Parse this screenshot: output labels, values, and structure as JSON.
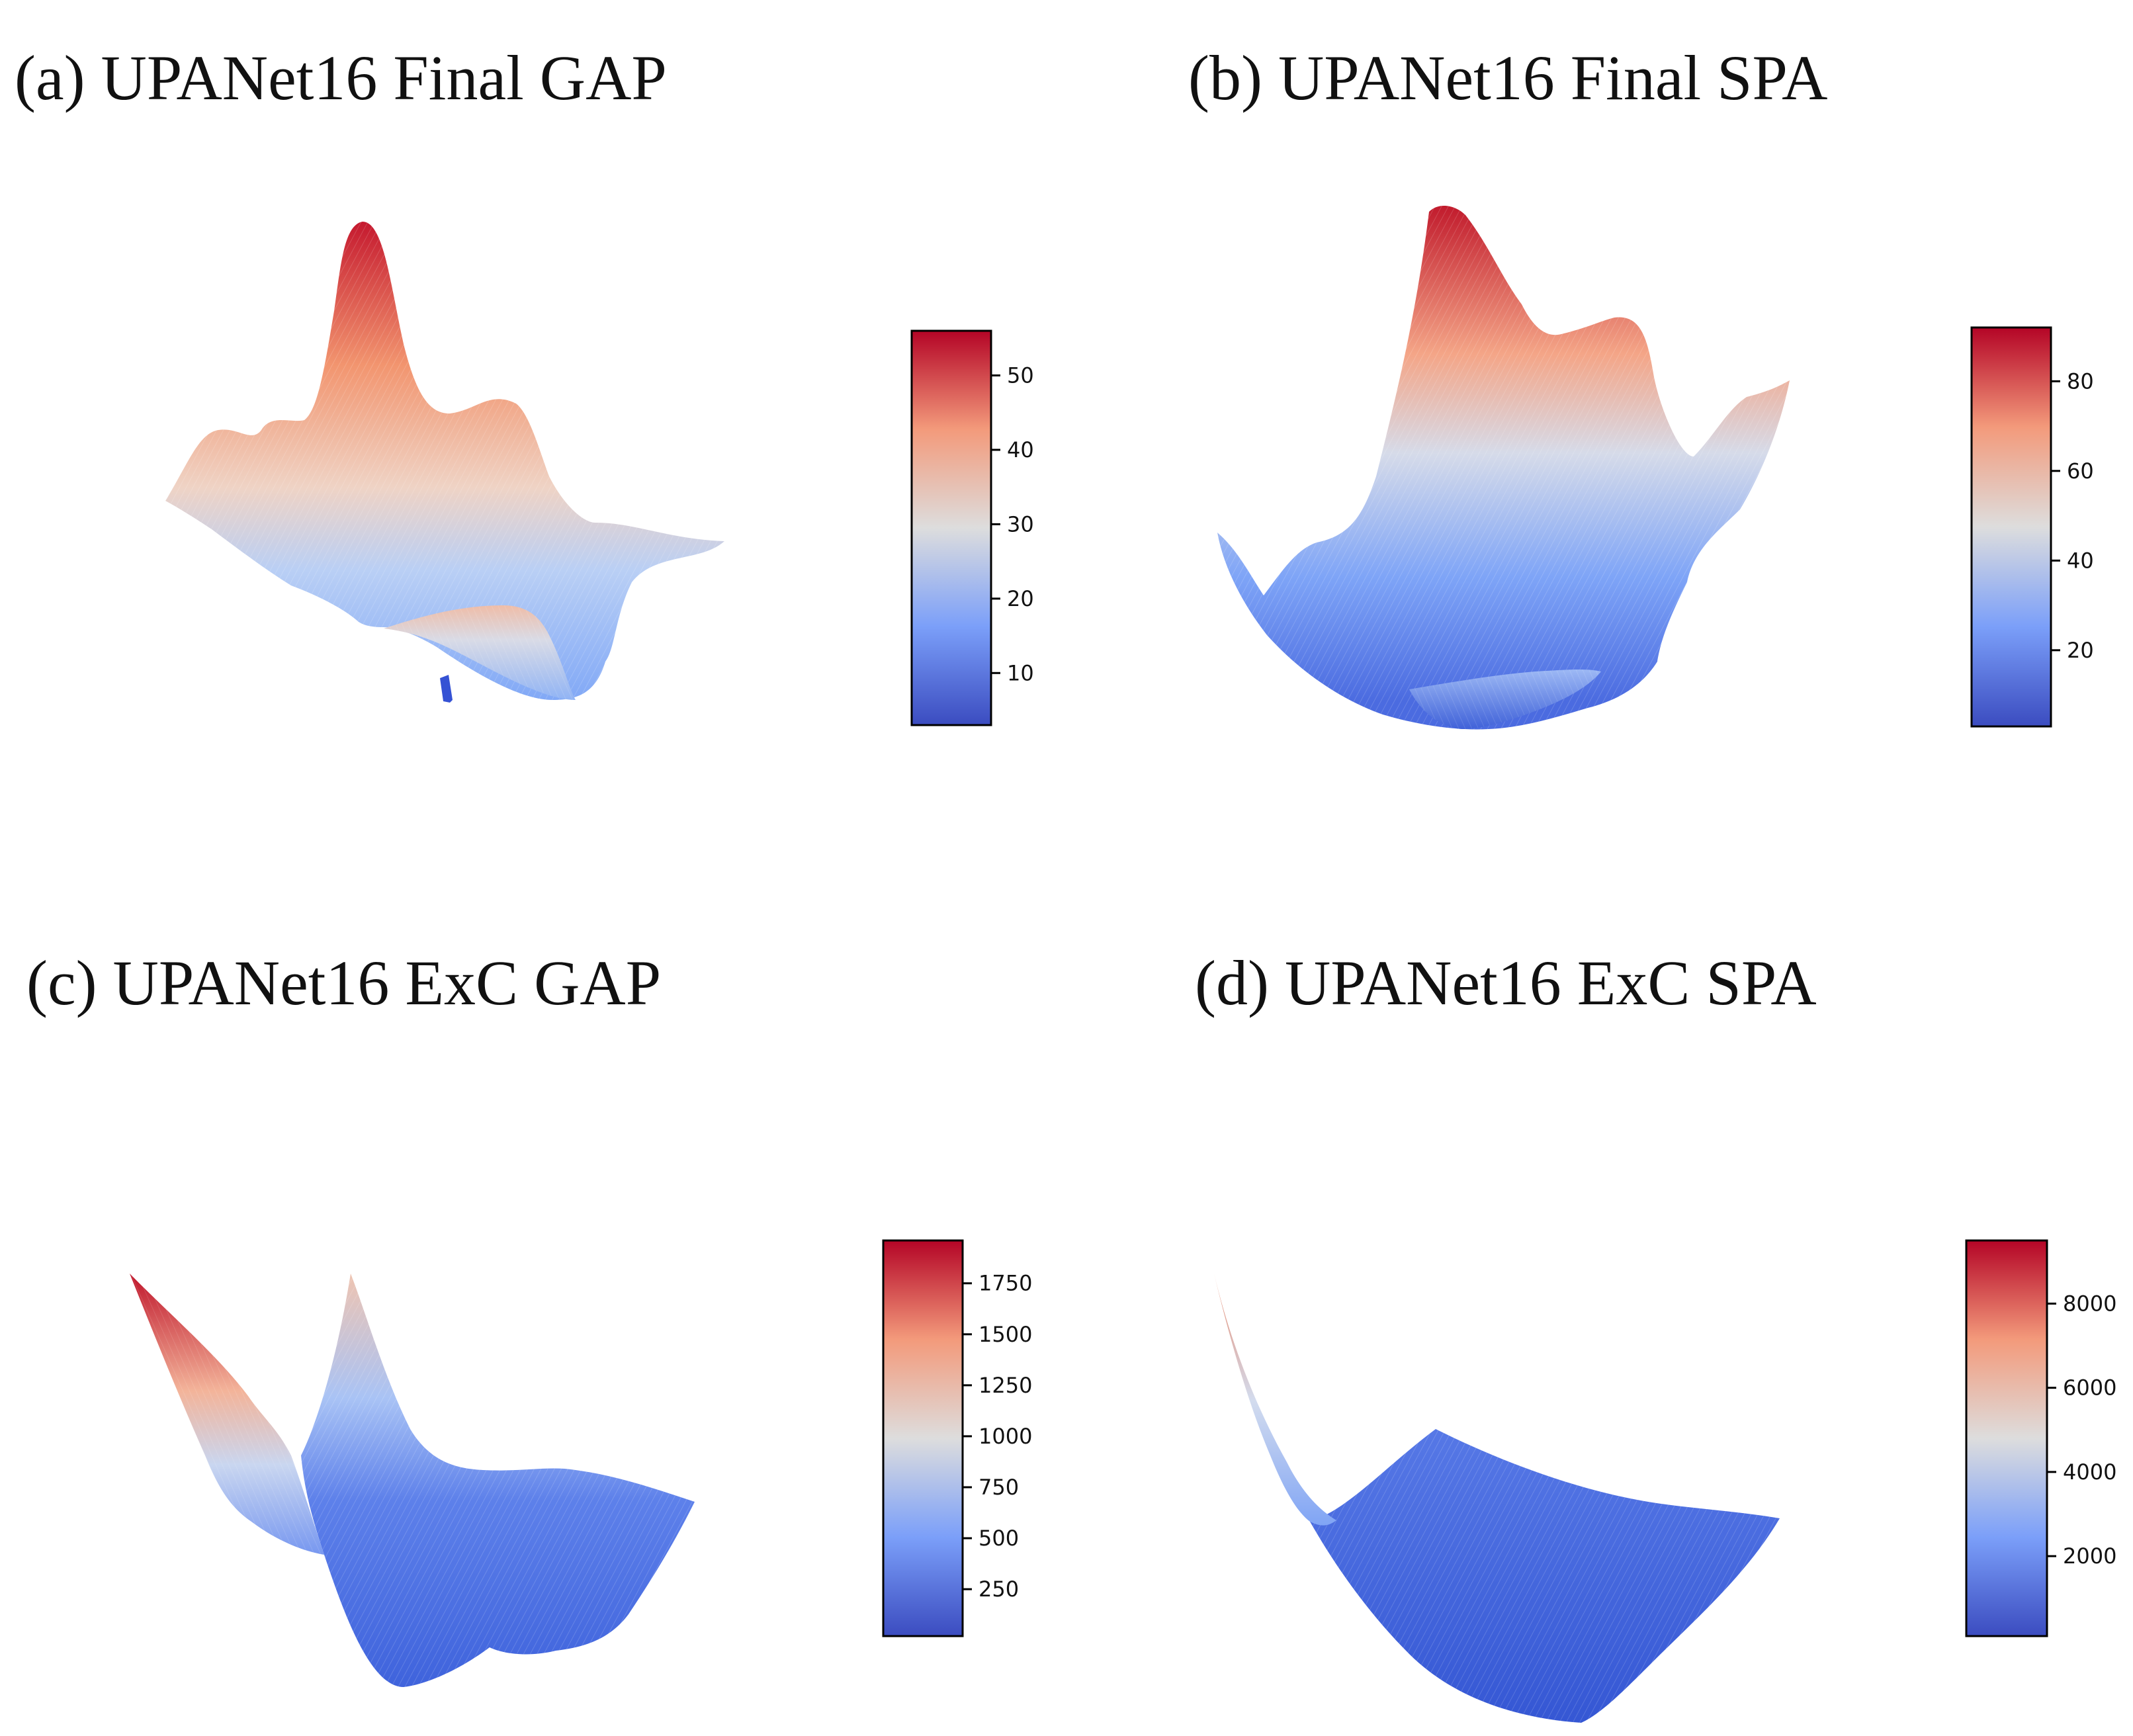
{
  "figure": {
    "panels": [
      {
        "label": "(a) UPANet16 Final GAP"
      },
      {
        "label": "(b) UPANet16 Final SPA"
      },
      {
        "label": "(c) UPANet16 ExC GAP"
      },
      {
        "label": "(d) UPANet16 ExC SPA"
      }
    ]
  },
  "colormap": {
    "name": "coolwarm",
    "low": "#3b4cc0",
    "mid": "#dddddd",
    "high": "#b40426"
  },
  "chart_data": [
    {
      "type": "surface3d",
      "title": "(a) UPANet16 Final GAP",
      "colorbar": {
        "range": [
          3,
          56
        ],
        "ticks": [
          10,
          20,
          30,
          40,
          50
        ],
        "tick_labels": [
          "10",
          "20",
          "30",
          "40",
          "50"
        ]
      },
      "surface": {
        "min": 3,
        "max": 56,
        "description": "rugged landscape with a sharp central peak near 55"
      }
    },
    {
      "type": "surface3d",
      "title": "(b) UPANet16 Final SPA",
      "colorbar": {
        "range": [
          3,
          92
        ],
        "ticks": [
          20,
          40,
          60,
          80
        ],
        "tick_labels": [
          "20",
          "40",
          "60",
          "80"
        ]
      },
      "surface": {
        "min": 3,
        "max": 92,
        "description": "bowl-shaped landscape with a high rim peaking near 90"
      }
    },
    {
      "type": "surface3d",
      "title": "(c) UPANet16 ExC GAP",
      "colorbar": {
        "range": [
          20,
          1960
        ],
        "ticks": [
          250,
          500,
          750,
          1000,
          1250,
          1500,
          1750
        ],
        "tick_labels": [
          "250",
          "500",
          "750",
          "1000",
          "1250",
          "1500",
          "1750"
        ]
      },
      "surface": {
        "min": 20,
        "max": 1960,
        "description": "folded valley rising steeply on the left edge"
      }
    },
    {
      "type": "surface3d",
      "title": "(d) UPANet16 ExC SPA",
      "colorbar": {
        "range": [
          100,
          9500
        ],
        "ticks": [
          2000,
          4000,
          6000,
          8000
        ],
        "tick_labels": [
          "2000",
          "4000",
          "6000",
          "8000"
        ]
      },
      "surface": {
        "min": 100,
        "max": 9500,
        "description": "smooth parabolic valley with a steep left wall"
      }
    }
  ]
}
